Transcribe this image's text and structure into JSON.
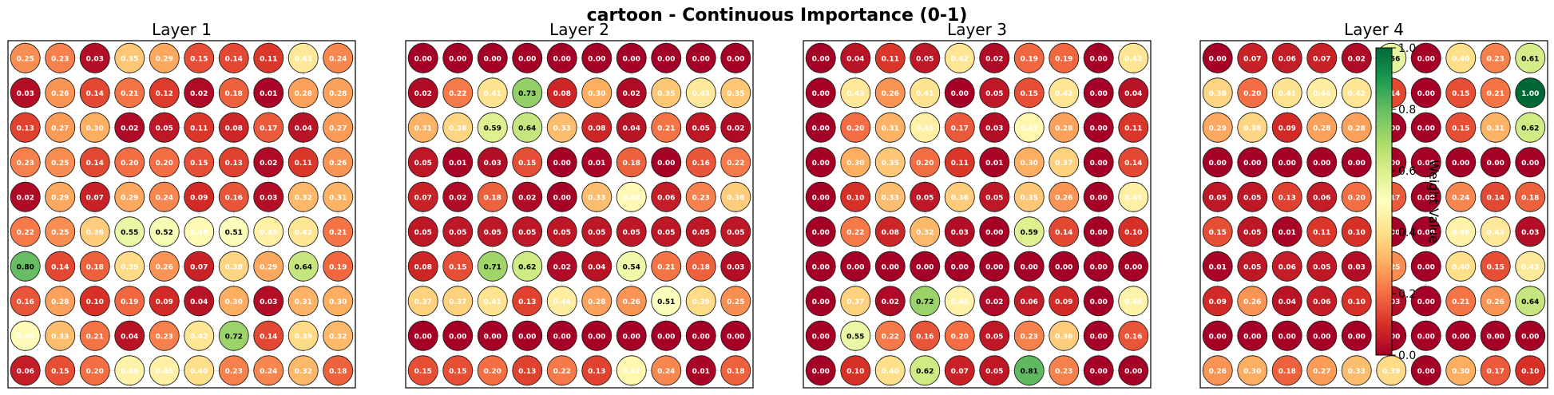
{
  "chart_data": {
    "type": "heatmap",
    "title": "cartoon - Continuous Importance (0-1)",
    "colorbar": {
      "label": "Weight Value",
      "ticks": [
        "0.0",
        "0.2",
        "0.4",
        "0.6",
        "0.8",
        "1.0"
      ],
      "range": [
        0,
        1
      ],
      "colormap": "RdYlGn",
      "colors": [
        "#a50026",
        "#d73027",
        "#f46d43",
        "#fdae61",
        "#fee08b",
        "#ffffbf",
        "#d9ef8b",
        "#a6d96a",
        "#66bd63",
        "#1a9850",
        "#006837"
      ]
    },
    "grid": true,
    "panels": [
      {
        "title": "Layer 1",
        "values": [
          [
            0.25,
            0.23,
            0.03,
            0.35,
            0.29,
            0.15,
            0.14,
            0.11,
            0.43,
            0.24
          ],
          [
            0.03,
            0.26,
            0.14,
            0.21,
            0.12,
            0.02,
            0.18,
            0.01,
            0.28,
            0.28
          ],
          [
            0.13,
            0.27,
            0.3,
            0.02,
            0.05,
            0.11,
            0.08,
            0.17,
            0.04,
            0.27
          ],
          [
            0.23,
            0.25,
            0.14,
            0.2,
            0.2,
            0.15,
            0.13,
            0.02,
            0.11,
            0.26
          ],
          [
            0.02,
            0.29,
            0.07,
            0.29,
            0.24,
            0.09,
            0.16,
            0.03,
            0.32,
            0.31
          ],
          [
            0.22,
            0.25,
            0.36,
            0.55,
            0.52,
            0.48,
            0.51,
            0.45,
            0.42,
            0.21
          ],
          [
            0.8,
            0.14,
            0.18,
            0.39,
            0.26,
            0.07,
            0.38,
            0.29,
            0.64,
            0.19
          ],
          [
            0.16,
            0.28,
            0.1,
            0.19,
            0.09,
            0.04,
            0.3,
            0.03,
            0.31,
            0.3
          ],
          [
            0.49,
            0.33,
            0.21,
            0.04,
            0.23,
            0.42,
            0.72,
            0.14,
            0.39,
            0.32
          ],
          [
            0.06,
            0.15,
            0.2,
            0.46,
            0.45,
            0.4,
            0.23,
            0.24,
            0.32,
            0.18
          ]
        ]
      },
      {
        "title": "Layer 2",
        "values": [
          [
            0.0,
            0.0,
            0.0,
            0.0,
            0.0,
            0.0,
            0.0,
            0.0,
            0.0,
            0.0
          ],
          [
            0.02,
            0.22,
            0.41,
            0.73,
            0.08,
            0.3,
            0.02,
            0.35,
            0.43,
            0.35
          ],
          [
            0.31,
            0.38,
            0.59,
            0.64,
            0.33,
            0.08,
            0.04,
            0.21,
            0.05,
            0.02
          ],
          [
            0.05,
            0.01,
            0.03,
            0.15,
            0.0,
            0.01,
            0.18,
            0.0,
            0.16,
            0.22
          ],
          [
            0.07,
            0.02,
            0.18,
            0.02,
            0.0,
            0.33,
            0.48,
            0.06,
            0.23,
            0.36
          ],
          [
            0.05,
            0.05,
            0.05,
            0.05,
            0.05,
            0.05,
            0.05,
            0.05,
            0.05,
            0.05
          ],
          [
            0.08,
            0.15,
            0.71,
            0.62,
            0.02,
            0.04,
            0.54,
            0.21,
            0.18,
            0.03
          ],
          [
            0.37,
            0.37,
            0.41,
            0.13,
            0.44,
            0.28,
            0.26,
            0.51,
            0.39,
            0.25
          ],
          [
            0.0,
            0.0,
            0.0,
            0.0,
            0.0,
            0.0,
            0.0,
            0.0,
            0.0,
            0.0
          ],
          [
            0.15,
            0.15,
            0.2,
            0.13,
            0.22,
            0.13,
            0.47,
            0.24,
            0.01,
            0.18
          ]
        ]
      },
      {
        "title": "Layer 3",
        "values": [
          [
            0.0,
            0.04,
            0.11,
            0.05,
            0.42,
            0.02,
            0.19,
            0.19,
            0.0,
            0.42
          ],
          [
            0.0,
            0.43,
            0.26,
            0.41,
            0.0,
            0.05,
            0.15,
            0.42,
            0.0,
            0.04
          ],
          [
            0.0,
            0.2,
            0.31,
            0.45,
            0.17,
            0.03,
            0.47,
            0.28,
            0.0,
            0.11
          ],
          [
            0.0,
            0.3,
            0.35,
            0.2,
            0.11,
            0.01,
            0.3,
            0.37,
            0.0,
            0.14
          ],
          [
            0.0,
            0.1,
            0.33,
            0.05,
            0.36,
            0.05,
            0.35,
            0.26,
            0.0,
            0.45
          ],
          [
            0.0,
            0.22,
            0.08,
            0.32,
            0.03,
            0.0,
            0.59,
            0.14,
            0.0,
            0.1
          ],
          [
            0.0,
            0.0,
            0.0,
            0.0,
            0.0,
            0.0,
            0.0,
            0.0,
            0.0,
            0.0
          ],
          [
            0.0,
            0.37,
            0.02,
            0.72,
            0.46,
            0.02,
            0.06,
            0.09,
            0.0,
            0.46
          ],
          [
            0.0,
            0.55,
            0.22,
            0.16,
            0.2,
            0.05,
            0.23,
            0.36,
            0.0,
            0.16
          ],
          [
            0.0,
            0.1,
            0.4,
            0.62,
            0.07,
            0.05,
            0.81,
            0.23,
            0.0,
            0.0
          ]
        ]
      },
      {
        "title": "Layer 4",
        "values": [
          [
            0.0,
            0.07,
            0.06,
            0.07,
            0.02,
            0.56,
            0.0,
            0.4,
            0.23,
            0.61
          ],
          [
            0.38,
            0.2,
            0.41,
            0.44,
            0.42,
            0.14,
            0.0,
            0.15,
            0.21,
            1.0
          ],
          [
            0.29,
            0.38,
            0.09,
            0.28,
            0.28,
            0.0,
            0.0,
            0.15,
            0.31,
            0.62
          ],
          [
            0.0,
            0.0,
            0.0,
            0.0,
            0.0,
            0.0,
            0.0,
            0.0,
            0.0,
            0.0
          ],
          [
            0.05,
            0.05,
            0.13,
            0.06,
            0.2,
            0.17,
            0.0,
            0.24,
            0.14,
            0.18
          ],
          [
            0.15,
            0.05,
            0.01,
            0.11,
            0.1,
            0.0,
            0.0,
            0.46,
            0.43,
            0.03
          ],
          [
            0.01,
            0.05,
            0.06,
            0.05,
            0.03,
            0.25,
            0.0,
            0.4,
            0.15,
            0.43
          ],
          [
            0.09,
            0.26,
            0.04,
            0.06,
            0.1,
            0.03,
            0.0,
            0.21,
            0.26,
            0.64
          ],
          [
            0.0,
            0.0,
            0.0,
            0.0,
            0.0,
            0.0,
            0.0,
            0.0,
            0.0,
            0.0
          ],
          [
            0.26,
            0.3,
            0.18,
            0.27,
            0.33,
            0.39,
            0.0,
            0.3,
            0.17,
            0.1
          ]
        ]
      }
    ]
  }
}
